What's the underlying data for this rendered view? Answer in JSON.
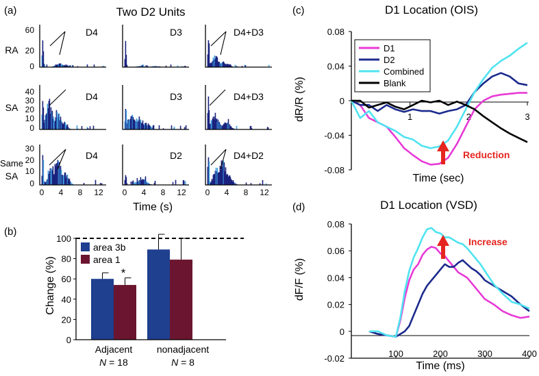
{
  "figure": {
    "panel_a": {
      "letter": "(a)",
      "title": "Two D2 Units",
      "row_labels": [
        "RA",
        "SA",
        "Same",
        "SA"
      ],
      "y_ticks": {
        "ra": [
          "60",
          "20",
          "0"
        ],
        "sa": [
          "40",
          "30",
          "20",
          "10",
          "0"
        ],
        "same_sa": [
          "30",
          "20",
          "10",
          "0"
        ]
      },
      "x_ticks": [
        "0",
        "4",
        "8",
        "12"
      ],
      "xlabel": "Time (s)",
      "subplot_labels": [
        [
          "D4",
          "D3",
          "D4+D3"
        ],
        [
          "D4",
          "D3",
          "D4+D3"
        ],
        [
          "D4",
          "D2",
          "D4+D2"
        ]
      ]
    },
    "panel_b": {
      "letter": "(b)",
      "ylabel": "Change (%)",
      "y_ticks": [
        "100",
        "80",
        "60",
        "40",
        "20",
        "0"
      ],
      "legend": [
        "area 3b",
        "area 1"
      ],
      "star": "*",
      "group_labels": [
        "Adjacent",
        "nonadjacent"
      ],
      "n_labels": [
        {
          "n": "N",
          "eq": " = 18"
        },
        {
          "n": "N",
          "eq": " = 8"
        }
      ]
    },
    "panel_c": {
      "letter": "(c)",
      "title": "D1 Location (OIS)",
      "ylabel": "dR/R (%)",
      "xlabel": "Time (sec)",
      "y_ticks": [
        "0.08",
        "0.04",
        "0",
        "-0.04",
        "-0.08"
      ],
      "x_ticks": [
        "1",
        "2",
        "3"
      ],
      "legend": [
        "D1",
        "D2",
        "Combined",
        "Blank"
      ],
      "annotation": "Reduction"
    },
    "panel_d": {
      "letter": "(d)",
      "title": "D1 Location (VSD)",
      "ylabel": "dF/F (%)",
      "xlabel": "Time (ms)",
      "y_ticks": [
        "0.08",
        "0.06",
        "0.04",
        "0.02",
        "0",
        "-0.02"
      ],
      "x_ticks": [
        "100",
        "200",
        "300",
        "400"
      ],
      "annotation": "Increase"
    }
  },
  "colors": {
    "d1": "#e83ad6",
    "d2": "#1b2a8c",
    "combined": "#4fe3f0",
    "blank": "#000000",
    "area3b": "#1f3f8f",
    "area1": "#6b1530",
    "arrow": "#e5251f",
    "hist_dark": "#1a237e",
    "hist_light": "#3fa0e0"
  },
  "chart_data": [
    {
      "id": "a",
      "type": "bar",
      "title": "Two D2 Units",
      "xlabel": "Time (s)",
      "xlim": [
        0,
        15
      ],
      "rows": [
        {
          "label": "RA",
          "ylim": [
            0,
            60
          ],
          "columns": [
            {
              "label": "D4",
              "peaks": [
                {
                  "t": 0.3,
                  "v": 62
                },
                {
                  "t": 4.3,
                  "v": 6
                },
                {
                  "t": 4.8,
                  "v": 5
                },
                {
                  "t": 5.5,
                  "v": 4
                }
              ]
            },
            {
              "label": "D3",
              "peaks": [
                {
                  "t": 0.3,
                  "v": 40
                },
                {
                  "t": 4.0,
                  "v": 2
                },
                {
                  "t": 7.5,
                  "v": 2
                }
              ]
            },
            {
              "label": "D4+D3",
              "peaks": [
                {
                  "t": 0.3,
                  "v": 60
                },
                {
                  "t": 2.0,
                  "v": 18
                },
                {
                  "t": 3.5,
                  "v": 8
                },
                {
                  "t": 4.5,
                  "v": 6
                }
              ]
            }
          ]
        },
        {
          "label": "SA",
          "ylim": [
            0,
            40
          ],
          "columns": [
            {
              "label": "D4",
              "peaks": [
                {
                  "t": 0.3,
                  "v": 40
                },
                {
                  "t": 1.8,
                  "v": 27
                },
                {
                  "t": 3.9,
                  "v": 17
                },
                {
                  "t": 5,
                  "v": 9
                }
              ]
            },
            {
              "label": "D3",
              "peaks": [
                {
                  "t": 0.3,
                  "v": 32
                },
                {
                  "t": 1.6,
                  "v": 16
                },
                {
                  "t": 3.3,
                  "v": 12
                },
                {
                  "t": 5.2,
                  "v": 7
                }
              ]
            },
            {
              "label": "D4+D3",
              "peaks": [
                {
                  "t": 0.3,
                  "v": 38
                },
                {
                  "t": 1.8,
                  "v": 16
                },
                {
                  "t": 4.5,
                  "v": 9
                }
              ]
            }
          ]
        },
        {
          "label": "Same SA",
          "ylim": [
            0,
            30
          ],
          "columns": [
            {
              "label": "D4",
              "peaks": [
                {
                  "t": 0.3,
                  "v": 30
                },
                {
                  "t": 2.5,
                  "v": 16
                },
                {
                  "t": 3.9,
                  "v": 20
                },
                {
                  "t": 5.5,
                  "v": 10
                }
              ]
            },
            {
              "label": "D2",
              "peaks": [
                {
                  "t": 0.3,
                  "v": 13
                },
                {
                  "t": 4.3,
                  "v": 7
                }
              ]
            },
            {
              "label": "D4+D2",
              "peaks": [
                {
                  "t": 0.3,
                  "v": 29
                },
                {
                  "t": 2.5,
                  "v": 17
                },
                {
                  "t": 3.7,
                  "v": 21
                },
                {
                  "t": 5,
                  "v": 9
                }
              ]
            }
          ]
        }
      ]
    },
    {
      "id": "b",
      "type": "bar",
      "categories": [
        "Adjacent",
        "nonadjacent"
      ],
      "series": [
        {
          "name": "area 3b",
          "values": [
            60,
            89
          ],
          "errors": [
            6,
            15
          ]
        },
        {
          "name": "area 1",
          "values": [
            54,
            79
          ],
          "errors": [
            7,
            21
          ]
        }
      ],
      "reference_line": 100,
      "ylim": [
        0,
        100
      ],
      "ylabel": "Change (%)"
    },
    {
      "id": "c",
      "type": "line",
      "title": "D1 Location (OIS)",
      "xlabel": "Time (sec)",
      "ylabel": "dR/R (%)",
      "xlim": [
        0,
        3
      ],
      "ylim": [
        -0.08,
        0.08
      ],
      "x": [
        0,
        0.15,
        0.3,
        0.45,
        0.6,
        0.75,
        0.9,
        1.05,
        1.2,
        1.35,
        1.5,
        1.65,
        1.8,
        1.95,
        2.1,
        2.25,
        2.4,
        2.55,
        2.7,
        2.85,
        3.0
      ],
      "series": [
        {
          "name": "D1",
          "values": [
            0,
            -0.005,
            -0.02,
            -0.025,
            -0.03,
            -0.042,
            -0.055,
            -0.063,
            -0.07,
            -0.074,
            -0.073,
            -0.066,
            -0.05,
            -0.03,
            -0.01,
            0.0,
            0.005,
            0.007,
            0.008,
            0.009,
            0.009
          ]
        },
        {
          "name": "D2",
          "values": [
            0,
            -0.005,
            -0.005,
            -0.012,
            -0.005,
            -0.01,
            -0.013,
            -0.01,
            -0.012,
            -0.012,
            -0.015,
            -0.012,
            -0.01,
            -0.005,
            0.01,
            0.02,
            0.028,
            0.032,
            0.028,
            0.02,
            0.018
          ]
        },
        {
          "name": "Combined",
          "values": [
            0,
            -0.02,
            -0.012,
            -0.025,
            -0.03,
            -0.035,
            -0.042,
            -0.045,
            -0.052,
            -0.055,
            -0.053,
            -0.046,
            -0.03,
            -0.01,
            0.01,
            0.025,
            0.038,
            0.046,
            0.052,
            0.06,
            0.067
          ]
        },
        {
          "name": "Blank",
          "values": [
            0,
            0,
            -0.008,
            -0.005,
            -0.002,
            -0.007,
            -0.01,
            -0.005,
            0,
            -0.002,
            0,
            -0.005,
            -0.001,
            -0.005,
            -0.01,
            -0.018,
            -0.025,
            -0.032,
            -0.038,
            -0.043,
            -0.048
          ]
        }
      ],
      "annotations": [
        "Reduction"
      ]
    },
    {
      "id": "d",
      "type": "line",
      "title": "D1 Location (VSD)",
      "xlabel": "Time (ms)",
      "ylabel": "dF/F (%)",
      "xlim": [
        0,
        400
      ],
      "ylim": [
        -0.02,
        0.08
      ],
      "x": [
        40,
        60,
        80,
        100,
        110,
        120,
        130,
        140,
        150,
        160,
        170,
        180,
        190,
        200,
        210,
        220,
        230,
        240,
        250,
        260,
        270,
        280,
        290,
        300,
        320,
        340,
        360,
        380,
        400
      ],
      "series": [
        {
          "name": "D1",
          "values": [
            0,
            -0.002,
            -0.003,
            -0.004,
            0.008,
            0.025,
            0.038,
            0.046,
            0.05,
            0.057,
            0.061,
            0.063,
            0.062,
            0.058,
            0.056,
            0.052,
            0.048,
            0.044,
            0.042,
            0.04,
            0.036,
            0.032,
            0.028,
            0.024,
            0.02,
            0.015,
            0.012,
            0.01,
            0.011
          ]
        },
        {
          "name": "D2",
          "values": [
            0,
            -0.002,
            -0.003,
            -0.004,
            -0.002,
            0.0,
            0.004,
            0.012,
            0.02,
            0.028,
            0.034,
            0.038,
            0.042,
            0.046,
            0.05,
            0.048,
            0.048,
            0.051,
            0.053,
            0.05,
            0.047,
            0.045,
            0.042,
            0.038,
            0.034,
            0.03,
            0.026,
            0.02,
            0.015
          ]
        },
        {
          "name": "Combined",
          "values": [
            0,
            0,
            -0.003,
            -0.004,
            0.01,
            0.03,
            0.045,
            0.055,
            0.062,
            0.07,
            0.076,
            0.077,
            0.074,
            0.073,
            0.07,
            0.07,
            0.068,
            0.066,
            0.065,
            0.062,
            0.058,
            0.054,
            0.05,
            0.045,
            0.035,
            0.028,
            0.022,
            0.02,
            0.017
          ]
        }
      ],
      "annotations": [
        "Increase"
      ]
    }
  ]
}
